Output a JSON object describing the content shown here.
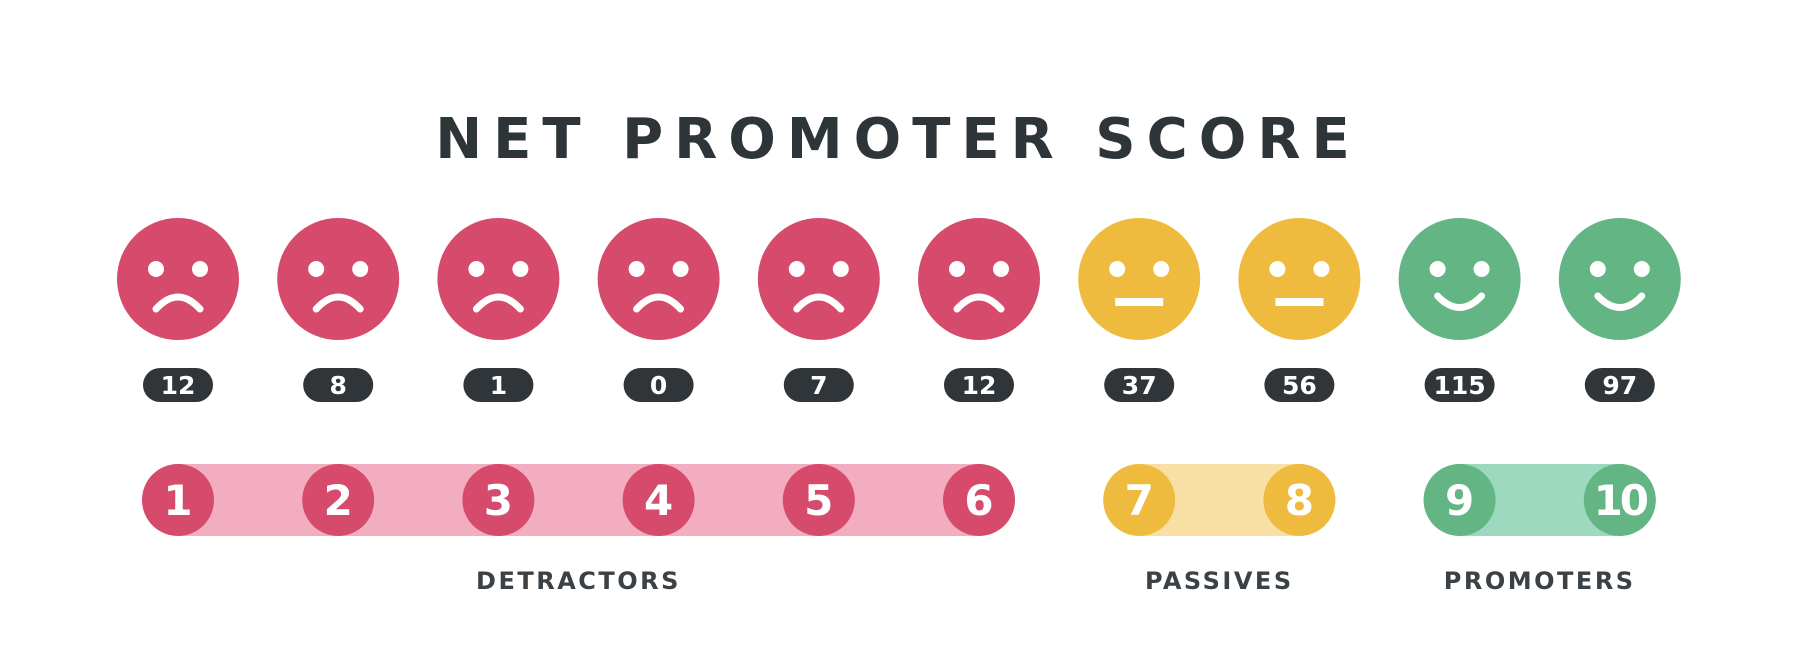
{
  "title": "NET PROMOTER SCORE",
  "colors": {
    "detractor": "#d64a6b",
    "detractor_band": "#f2adc0",
    "passive": "#efbb3f",
    "passive_band": "#f8e0a5",
    "promoter": "#63b584",
    "promoter_band": "#9dd9be",
    "badge": "#2f3538",
    "text": "#2e3539"
  },
  "chart_data": {
    "type": "bar",
    "title": "NET PROMOTER SCORE",
    "categories": [
      "1",
      "2",
      "3",
      "4",
      "5",
      "6",
      "7",
      "8",
      "9",
      "10"
    ],
    "values": [
      12,
      8,
      1,
      0,
      7,
      12,
      37,
      56,
      115,
      97
    ],
    "groups": [
      {
        "label": "DETRACTORS",
        "from": "1",
        "to": "6",
        "face": "sad-face-icon"
      },
      {
        "label": "PASSIVES",
        "from": "7",
        "to": "8",
        "face": "neutral-face-icon"
      },
      {
        "label": "PROMOTERS",
        "from": "9",
        "to": "10",
        "face": "happy-face-icon"
      }
    ]
  }
}
